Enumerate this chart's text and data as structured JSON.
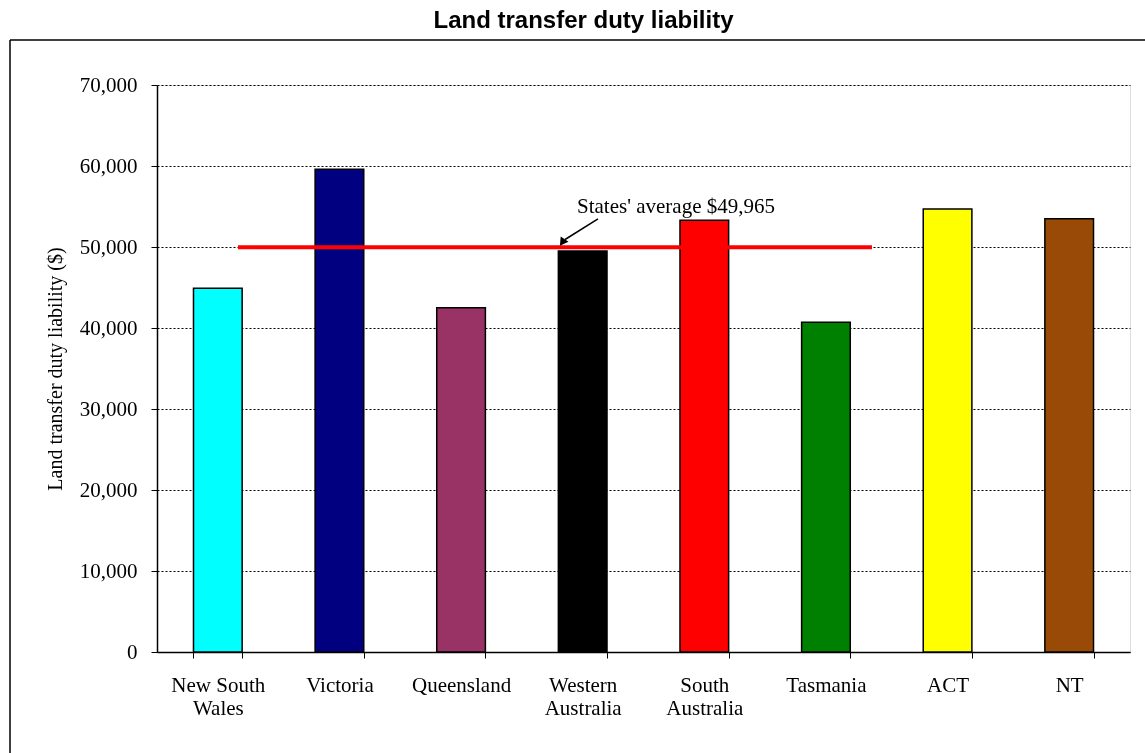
{
  "chart_data": {
    "type": "bar",
    "title": "Land transfer duty liability",
    "ylabel": "Land transfer duty liability ($)",
    "categories": [
      "New South Wales",
      "Victoria",
      "Queensland",
      "Western Australia",
      "South Australia",
      "Tasmania",
      "ACT",
      "NT"
    ],
    "values": [
      44900,
      59600,
      42500,
      49500,
      53300,
      40700,
      54700,
      53500
    ],
    "colors": [
      "#00ffff",
      "#000080",
      "#993366",
      "#000000",
      "#ff0000",
      "#008000",
      "#ffff00",
      "#994a06"
    ],
    "ylim": [
      0,
      70000
    ],
    "yticks": [
      0,
      {
        "value": 10000,
        "label": "10,000"
      },
      {
        "value": 20000,
        "label": "20,000"
      },
      {
        "value": 30000,
        "label": "30,000"
      },
      {
        "value": 40000,
        "label": "40,000"
      },
      {
        "value": 50000,
        "label": "50,000"
      },
      {
        "value": 60000,
        "label": "60,000"
      },
      {
        "value": 70000,
        "label": "70,000"
      }
    ],
    "grid": "y",
    "ref_lines": [
      {
        "axis": "y",
        "value": 49965,
        "label": "States' average $49,965",
        "color": "#ff0000"
      }
    ]
  }
}
